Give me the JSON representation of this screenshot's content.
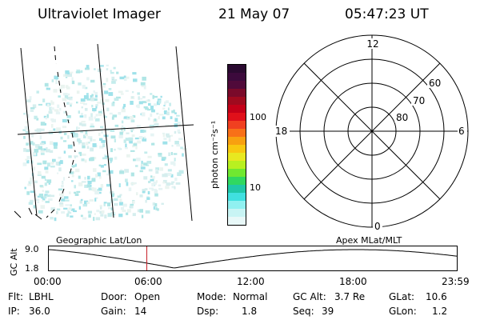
{
  "header": {
    "title": "Ultraviolet Imager",
    "date": "21 May 07",
    "time": "05:47:23 UT"
  },
  "colorbar": {
    "unit_label": "photon cm⁻²s⁻¹",
    "ticks": [
      "100",
      "10"
    ],
    "colors": [
      "#2a0a30",
      "#3c0a3c",
      "#500a3a",
      "#7a0a2a",
      "#a00a1e",
      "#c40018",
      "#e0101a",
      "#f04020",
      "#f87018",
      "#f8a010",
      "#f8c810",
      "#e8e820",
      "#b8f020",
      "#70e830",
      "#30d860",
      "#20c8a8",
      "#40e0e0",
      "#90f0f0",
      "#c8f4f4",
      "#e8f8f8"
    ]
  },
  "polar_plot": {
    "mlt_labels": {
      "top": "12",
      "left": "18",
      "right": "6",
      "bottom": "0"
    },
    "lat_labels": [
      "60",
      "70",
      "80"
    ]
  },
  "timeline": {
    "left_title": "Geographic Lat/Lon",
    "right_title": "Apex MLat/MLT",
    "y_axis_label": "GC Alt",
    "y_ticks": [
      "9.0",
      "1.8"
    ],
    "x_ticks": [
      "00:00",
      "06:00",
      "12:00",
      "18:00",
      "23:59"
    ],
    "current_time_marker_hours": 5.79
  },
  "info": {
    "flt": {
      "label": "Flt:",
      "value": "LBHL"
    },
    "ip": {
      "label": "IP:",
      "value": "36.0"
    },
    "door": {
      "label": "Door:",
      "value": "Open"
    },
    "gain": {
      "label": "Gain:",
      "value": "14"
    },
    "mode": {
      "label": "Mode:",
      "value": "Normal"
    },
    "dsp": {
      "label": "Dsp:",
      "value": "1.8"
    },
    "gcalt": {
      "label": "GC Alt:",
      "value": "3.7 Re"
    },
    "seq": {
      "label": "Seq:",
      "value": "39"
    },
    "glat": {
      "label": "GLat:",
      "value": "10.6"
    },
    "glon": {
      "label": "GLon:",
      "value": "1.2"
    }
  }
}
